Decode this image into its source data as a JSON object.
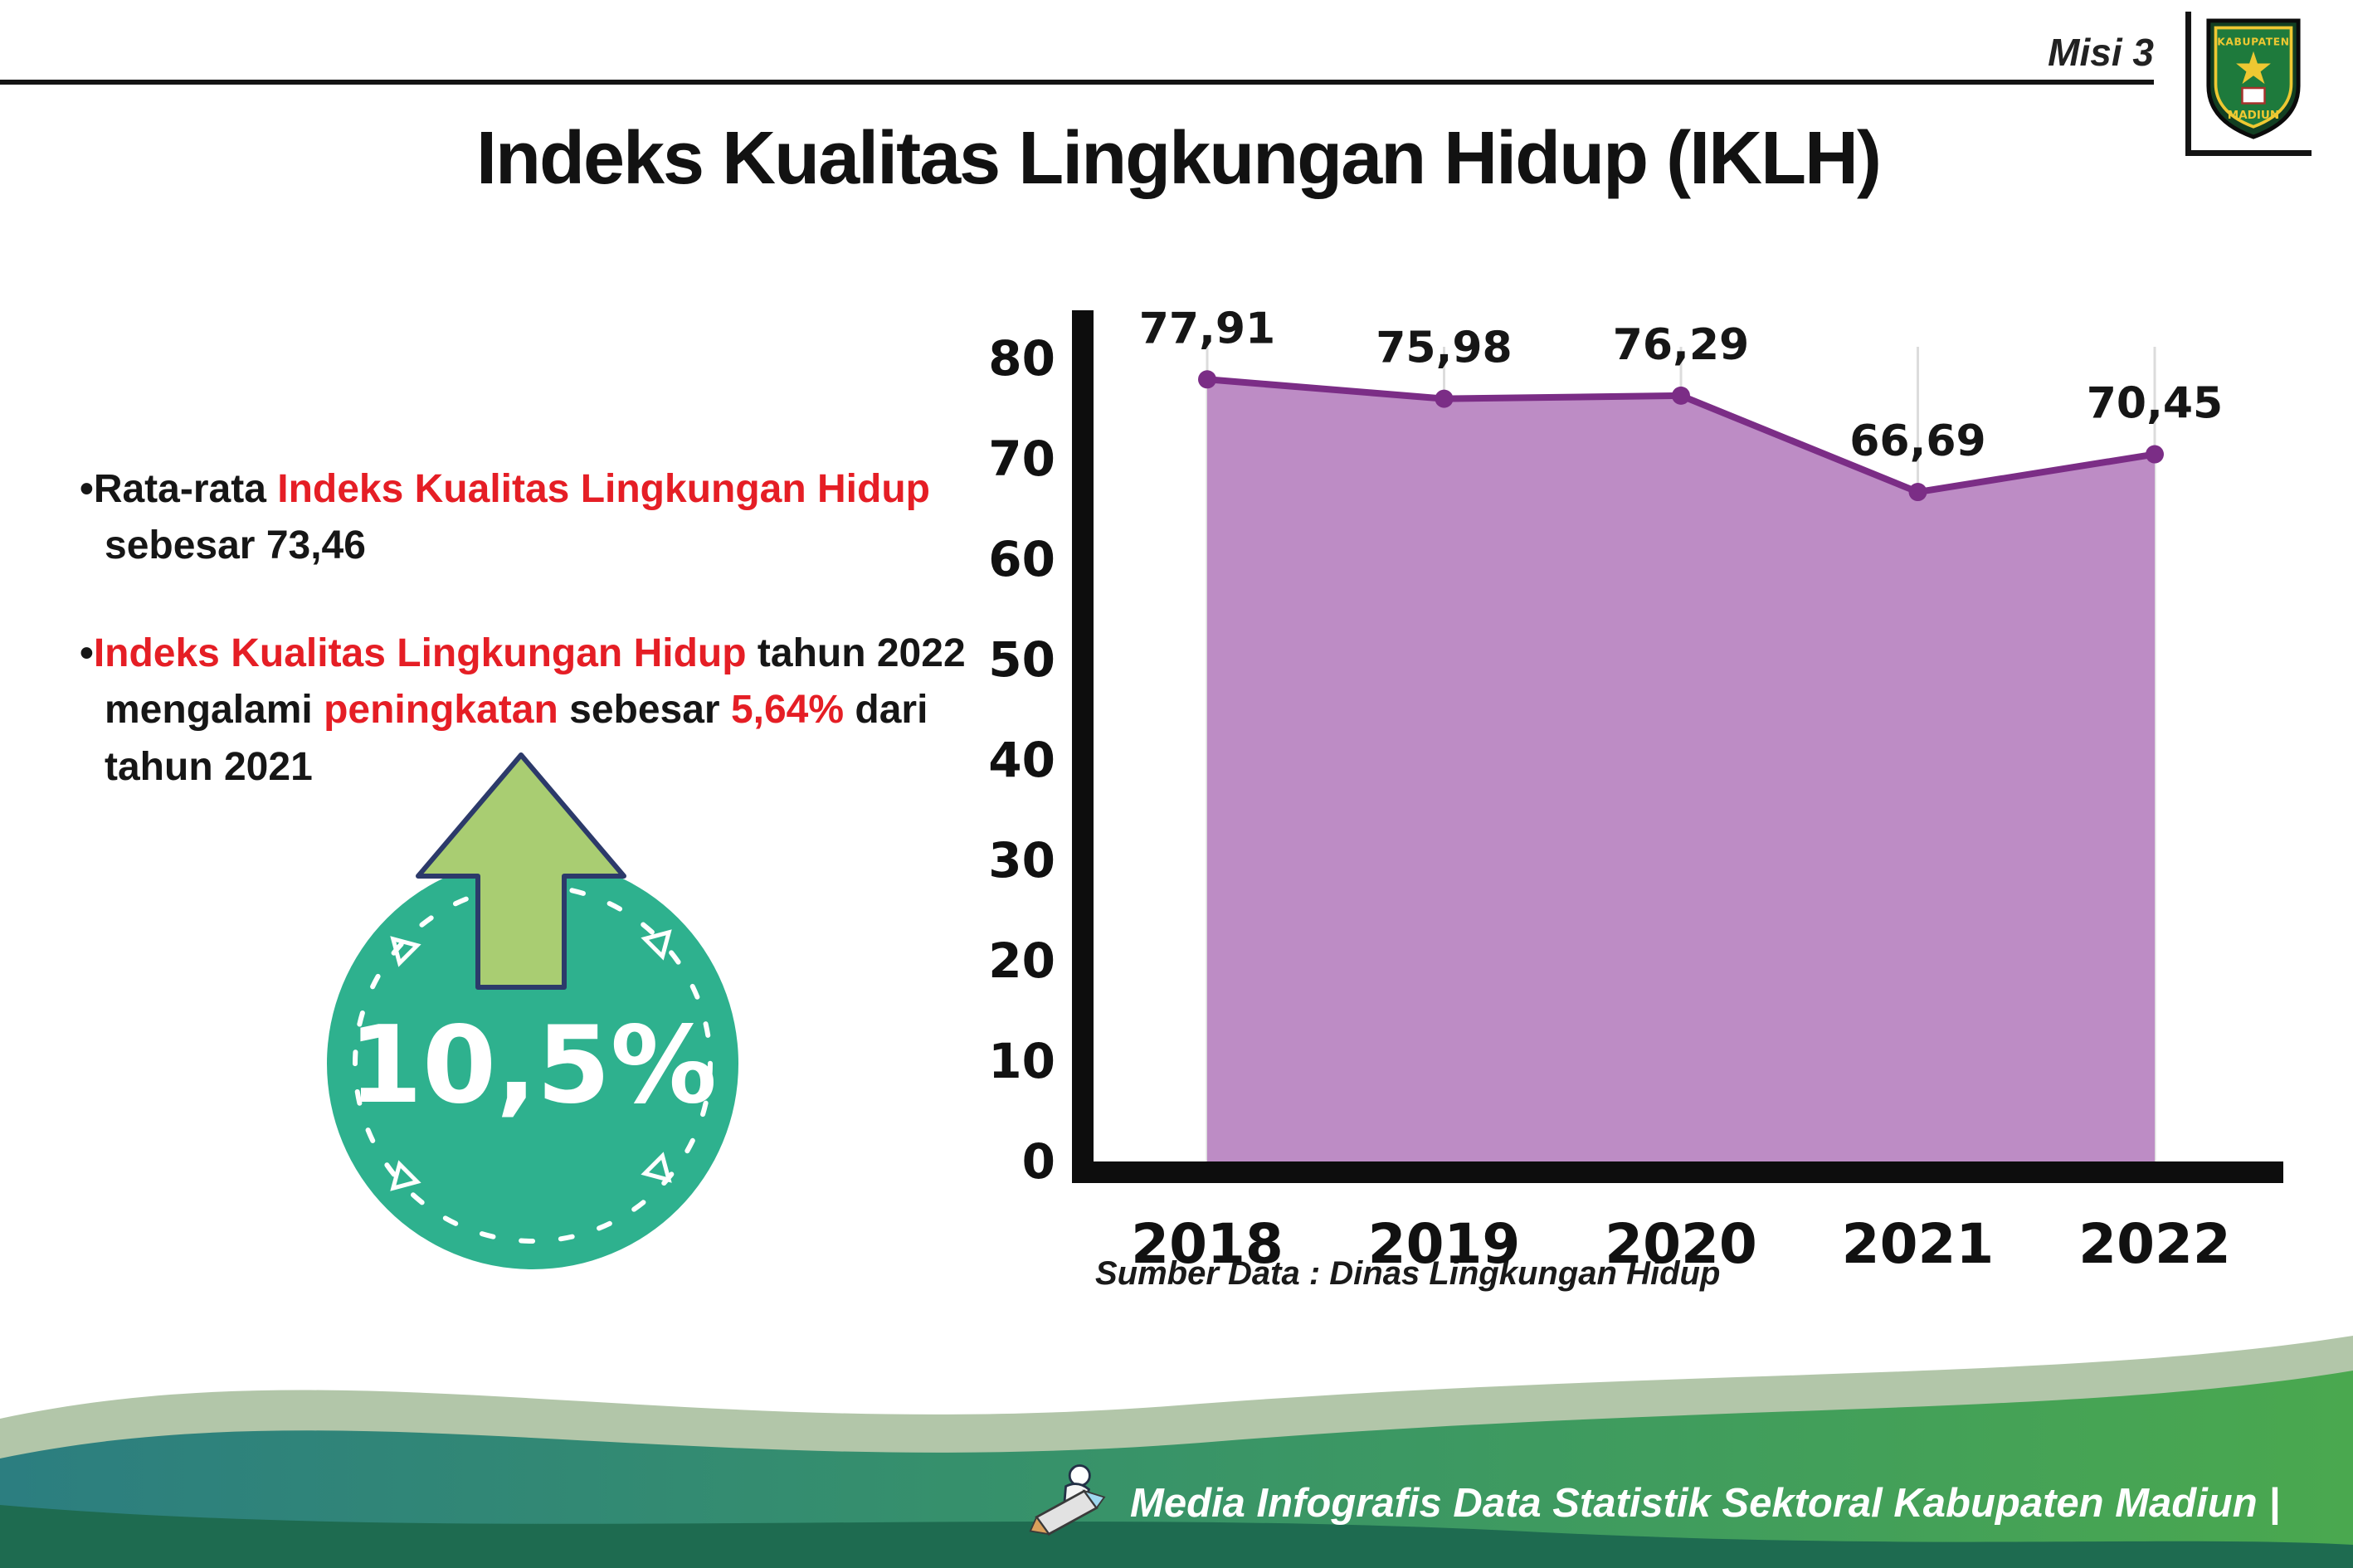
{
  "header": {
    "misi": "Misi 3",
    "title": "Indeks Kualitas Lingkungan Hidup (IKLH)"
  },
  "logo": {
    "top_text": "KABUPATEN",
    "bottom_text": "MADIUN"
  },
  "bullets": {
    "marker": "•",
    "b1": {
      "p1": "Rata-rata ",
      "p2": "Indeks Kualitas Lingkungan Hidup",
      "p3": " sebesar 73,46"
    },
    "b2": {
      "p1": "Indeks Kualitas Lingkungan Hidup",
      "p2": " tahun 2022 mengalami ",
      "p3": "peningkatan",
      "p4": " sebesar ",
      "p5": "5,64%",
      "p6": " dari tahun 2021"
    }
  },
  "badge": {
    "value": "10,5%"
  },
  "chart_data": {
    "type": "area",
    "categories": [
      "2018",
      "2019",
      "2020",
      "2021",
      "2022"
    ],
    "values": [
      77.91,
      75.98,
      76.29,
      66.69,
      70.45
    ],
    "value_labels": [
      "77,91",
      "75,98",
      "76,29",
      "66,69",
      "70,45"
    ],
    "title": "Indeks Kualitas Lingkungan Hidup (IKLH)",
    "xlabel": "",
    "ylabel": "",
    "ylim": [
      0,
      80
    ],
    "yticks": [
      0,
      10,
      20,
      30,
      40,
      50,
      60,
      70,
      80
    ],
    "grid": "vertical light gray",
    "legend": "none",
    "source": "Sumber Data : Dinas Lingkungan Hidup",
    "colors": {
      "fill": "#bd8cc5",
      "line": "#7b2d86",
      "axis": "#0d0d0d",
      "label": "#1a1a1a"
    }
  },
  "footer": {
    "text": "Media Infografis Data Statistik Sektoral Kabupaten Madiun |"
  }
}
